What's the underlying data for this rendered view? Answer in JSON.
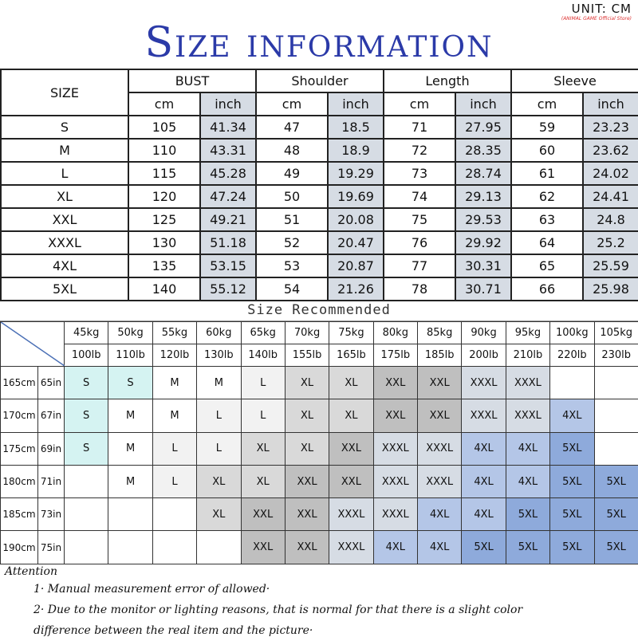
{
  "title": "Size information",
  "unit": "UNIT: CM",
  "store": "(ANIMAL GAME Official Store)",
  "size_table": {
    "size_header": "SIZE",
    "groups": [
      "BUST",
      "Shoulder",
      "Length",
      "Sleeve"
    ],
    "cm": "cm",
    "inch": "inch",
    "rows": [
      [
        "S",
        "105",
        "41.34",
        "47",
        "18.5",
        "71",
        "27.95",
        "59",
        "23.23"
      ],
      [
        "M",
        "110",
        "43.31",
        "48",
        "18.9",
        "72",
        "28.35",
        "60",
        "23.62"
      ],
      [
        "L",
        "115",
        "45.28",
        "49",
        "19.29",
        "73",
        "28.74",
        "61",
        "24.02"
      ],
      [
        "XL",
        "120",
        "47.24",
        "50",
        "19.69",
        "74",
        "29.13",
        "62",
        "24.41"
      ],
      [
        "XXL",
        "125",
        "49.21",
        "51",
        "20.08",
        "75",
        "29.53",
        "63",
        "24.8"
      ],
      [
        "XXXL",
        "130",
        "51.18",
        "52",
        "20.47",
        "76",
        "29.92",
        "64",
        "25.2"
      ],
      [
        "4XL",
        "135",
        "53.15",
        "53",
        "20.87",
        "77",
        "30.31",
        "65",
        "25.59"
      ],
      [
        "5XL",
        "140",
        "55.12",
        "54",
        "21.26",
        "78",
        "30.71",
        "66",
        "25.98"
      ]
    ]
  },
  "recommended": {
    "title": "Size Recommended",
    "kg": [
      "45kg",
      "50kg",
      "55kg",
      "60kg",
      "65kg",
      "70kg",
      "75kg",
      "80kg",
      "85kg",
      "90kg",
      "95kg",
      "100kg",
      "105kg"
    ],
    "lb": [
      "100lb",
      "110lb",
      "120lb",
      "130lb",
      "140lb",
      "155lb",
      "165lb",
      "175lb",
      "185lb",
      "200lb",
      "210lb",
      "220lb",
      "230lb"
    ],
    "rows": [
      {
        "cm": "165cm",
        "in": "65in",
        "sizes": [
          "S",
          "S",
          "M",
          "M",
          "L",
          "XL",
          "XL",
          "XXL",
          "XXL",
          "XXXL",
          "XXXL",
          "",
          ""
        ]
      },
      {
        "cm": "170cm",
        "in": "67in",
        "sizes": [
          "S",
          "M",
          "M",
          "L",
          "L",
          "XL",
          "XL",
          "XXL",
          "XXL",
          "XXXL",
          "XXXL",
          "4XL",
          ""
        ]
      },
      {
        "cm": "175cm",
        "in": "69in",
        "sizes": [
          "S",
          "M",
          "L",
          "L",
          "XL",
          "XL",
          "XXL",
          "XXXL",
          "XXXL",
          "4XL",
          "4XL",
          "5XL",
          ""
        ]
      },
      {
        "cm": "180cm",
        "in": "71in",
        "sizes": [
          "",
          "M",
          "L",
          "XL",
          "XL",
          "XXL",
          "XXL",
          "XXXL",
          "XXXL",
          "4XL",
          "4XL",
          "5XL",
          "5XL"
        ]
      },
      {
        "cm": "185cm",
        "in": "73in",
        "sizes": [
          "",
          "",
          "",
          "XL",
          "XXL",
          "XXL",
          "XXXL",
          "XXXL",
          "4XL",
          "4XL",
          "5XL",
          "5XL",
          "5XL"
        ]
      },
      {
        "cm": "190cm",
        "in": "75in",
        "sizes": [
          "",
          "",
          "",
          "",
          "XXL",
          "XXL",
          "XXXL",
          "4XL",
          "4XL",
          "5XL",
          "5XL",
          "5XL",
          "5XL"
        ]
      }
    ],
    "colors": {
      "S": "#d5f3f2",
      "M": "#ffffff",
      "L": "#f2f2f2",
      "XL": "#d9d9d9",
      "XXL": "#bfbfbf",
      "XXXL": "#d6dce4",
      "4XL": "#b4c6e7",
      "5XL": "#8eaadb"
    }
  },
  "attention": {
    "title": "Attention",
    "line1": "1· Manual measurement error of allowed·",
    "line2": "2·  Due to the monitor or lighting reasons, that is normal for that there is a slight color",
    "line3": "difference between the real item and the picture·"
  }
}
